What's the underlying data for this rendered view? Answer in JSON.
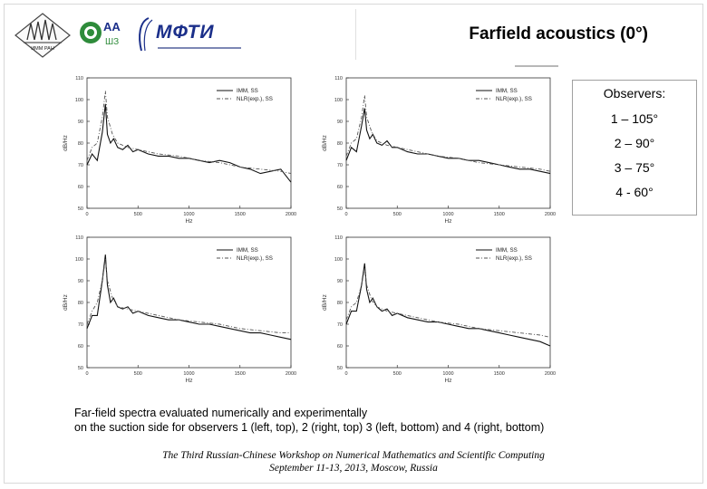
{
  "slide": {
    "title": "Farfield acoustics (0°)",
    "observers": {
      "heading": "Observers:",
      "items": [
        "1 – 105°",
        "2 – 90°",
        "3 – 75°",
        "4 - 60°"
      ]
    },
    "caption_lines": [
      "Far-field spectra evaluated numerically and experimentally",
      "on the suction side for observers 1 (left, top), 2 (right, top) 3 (left, bottom) and 4 (right, bottom)"
    ],
    "footer_lines": [
      "The Third Russian-Chinese Workshop on Numerical Mathematics and Scientific Computing",
      "September 11-13, 2013, Moscow, Russia"
    ],
    "logos": {
      "logo1_text": "ИММ РАН",
      "logo2_text": "АА",
      "logo3_text": "МФТИ"
    }
  },
  "colors": {
    "series_solid": "#111111",
    "series_dashed": "#555555",
    "axis": "#333333",
    "logo_blue": "#1b2f8a",
    "logo_green": "#2e8b3a"
  },
  "chart_data": [
    {
      "type": "line",
      "xlabel": "Hz",
      "ylabel": "dB/Hz",
      "xlim": [
        0,
        2000
      ],
      "ylim": [
        50,
        110
      ],
      "xticks": [
        0,
        500,
        1000,
        1500,
        2000
      ],
      "yticks": [
        50,
        60,
        70,
        80,
        90,
        100,
        110
      ],
      "legend": "top-right",
      "series": [
        {
          "name": "IMM, SS",
          "style": "solid",
          "x": [
            0,
            50,
            100,
            150,
            180,
            200,
            230,
            260,
            300,
            350,
            400,
            450,
            500,
            600,
            700,
            800,
            900,
            1000,
            1100,
            1200,
            1300,
            1400,
            1500,
            1600,
            1700,
            1800,
            1900,
            2000
          ],
          "y": [
            70,
            75,
            72,
            85,
            98,
            84,
            80,
            82,
            78,
            77,
            79,
            76,
            77,
            75,
            74,
            74,
            73,
            73,
            72,
            71,
            72,
            71,
            69,
            68,
            66,
            67,
            68,
            62
          ]
        },
        {
          "name": "NLR(exp.), SS",
          "style": "dashed",
          "x": [
            0,
            50,
            100,
            150,
            180,
            200,
            250,
            300,
            400,
            500,
            700,
            900,
            1100,
            1300,
            1500,
            1700,
            1900,
            2000
          ],
          "y": [
            72,
            78,
            80,
            92,
            104,
            92,
            84,
            80,
            78,
            77,
            75,
            74,
            72,
            71,
            69,
            68,
            67,
            66
          ]
        }
      ]
    },
    {
      "type": "line",
      "xlabel": "Hz",
      "ylabel": "dB/Hz",
      "xlim": [
        0,
        2000
      ],
      "ylim": [
        50,
        110
      ],
      "xticks": [
        0,
        500,
        1000,
        1500,
        2000
      ],
      "yticks": [
        50,
        60,
        70,
        80,
        90,
        100,
        110
      ],
      "legend": "top-right",
      "series": [
        {
          "name": "IMM, SS",
          "style": "solid",
          "x": [
            0,
            50,
            100,
            150,
            180,
            200,
            230,
            260,
            300,
            350,
            400,
            450,
            500,
            600,
            700,
            800,
            900,
            1000,
            1100,
            1200,
            1300,
            1400,
            1500,
            1600,
            1700,
            1800,
            1900,
            2000
          ],
          "y": [
            72,
            78,
            76,
            88,
            96,
            86,
            82,
            84,
            80,
            79,
            81,
            78,
            78,
            76,
            75,
            75,
            74,
            73,
            73,
            72,
            72,
            71,
            70,
            69,
            68,
            68,
            67,
            66
          ]
        },
        {
          "name": "NLR(exp.), SS",
          "style": "dashed",
          "x": [
            0,
            50,
            100,
            150,
            180,
            200,
            250,
            300,
            400,
            500,
            700,
            900,
            1100,
            1300,
            1500,
            1700,
            1900,
            2000
          ],
          "y": [
            74,
            80,
            82,
            92,
            102,
            92,
            85,
            81,
            79,
            78,
            76,
            74,
            73,
            71,
            70,
            69,
            68,
            67
          ]
        }
      ]
    },
    {
      "type": "line",
      "xlabel": "Hz",
      "ylabel": "dB/Hz",
      "xlim": [
        0,
        2000
      ],
      "ylim": [
        50,
        110
      ],
      "xticks": [
        0,
        500,
        1000,
        1500,
        2000
      ],
      "yticks": [
        50,
        60,
        70,
        80,
        90,
        100,
        110
      ],
      "legend": "top-right",
      "series": [
        {
          "name": "IMM, SS",
          "style": "solid",
          "x": [
            0,
            50,
            100,
            150,
            180,
            200,
            230,
            260,
            300,
            350,
            400,
            450,
            500,
            600,
            700,
            800,
            900,
            1000,
            1100,
            1200,
            1300,
            1400,
            1500,
            1600,
            1700,
            1800,
            1900,
            2000
          ],
          "y": [
            68,
            74,
            74,
            90,
            102,
            88,
            80,
            82,
            78,
            77,
            78,
            75,
            76,
            74,
            73,
            72,
            72,
            71,
            70,
            70,
            69,
            68,
            67,
            66,
            66,
            65,
            64,
            63
          ]
        },
        {
          "name": "NLR(exp.), SS",
          "style": "dashed",
          "x": [
            0,
            50,
            100,
            150,
            180,
            200,
            250,
            300,
            400,
            500,
            700,
            900,
            1100,
            1300,
            1500,
            1700,
            1900,
            2000
          ],
          "y": [
            70,
            76,
            80,
            90,
            100,
            90,
            82,
            78,
            77,
            76,
            74,
            72,
            71,
            70,
            68,
            67,
            66,
            66
          ]
        }
      ]
    },
    {
      "type": "line",
      "xlabel": "Hz",
      "ylabel": "dB/Hz",
      "xlim": [
        0,
        2000
      ],
      "ylim": [
        50,
        110
      ],
      "xticks": [
        0,
        500,
        1000,
        1500,
        2000
      ],
      "yticks": [
        50,
        60,
        70,
        80,
        90,
        100,
        110
      ],
      "legend": "top-right",
      "series": [
        {
          "name": "IMM, SS",
          "style": "solid",
          "x": [
            0,
            50,
            100,
            150,
            180,
            200,
            230,
            260,
            300,
            350,
            400,
            450,
            500,
            600,
            700,
            800,
            900,
            1000,
            1100,
            1200,
            1300,
            1400,
            1500,
            1600,
            1700,
            1800,
            1900,
            2000
          ],
          "y": [
            70,
            76,
            76,
            88,
            98,
            86,
            80,
            82,
            78,
            76,
            77,
            74,
            75,
            73,
            72,
            71,
            71,
            70,
            69,
            68,
            68,
            67,
            66,
            65,
            64,
            63,
            62,
            60
          ]
        },
        {
          "name": "NLR(exp.), SS",
          "style": "dashed",
          "x": [
            0,
            50,
            100,
            150,
            180,
            200,
            250,
            300,
            400,
            500,
            700,
            900,
            1100,
            1300,
            1500,
            1700,
            1900,
            2000
          ],
          "y": [
            72,
            78,
            80,
            88,
            96,
            88,
            81,
            78,
            76,
            75,
            73,
            71,
            70,
            68,
            67,
            66,
            65,
            64
          ]
        }
      ]
    }
  ]
}
